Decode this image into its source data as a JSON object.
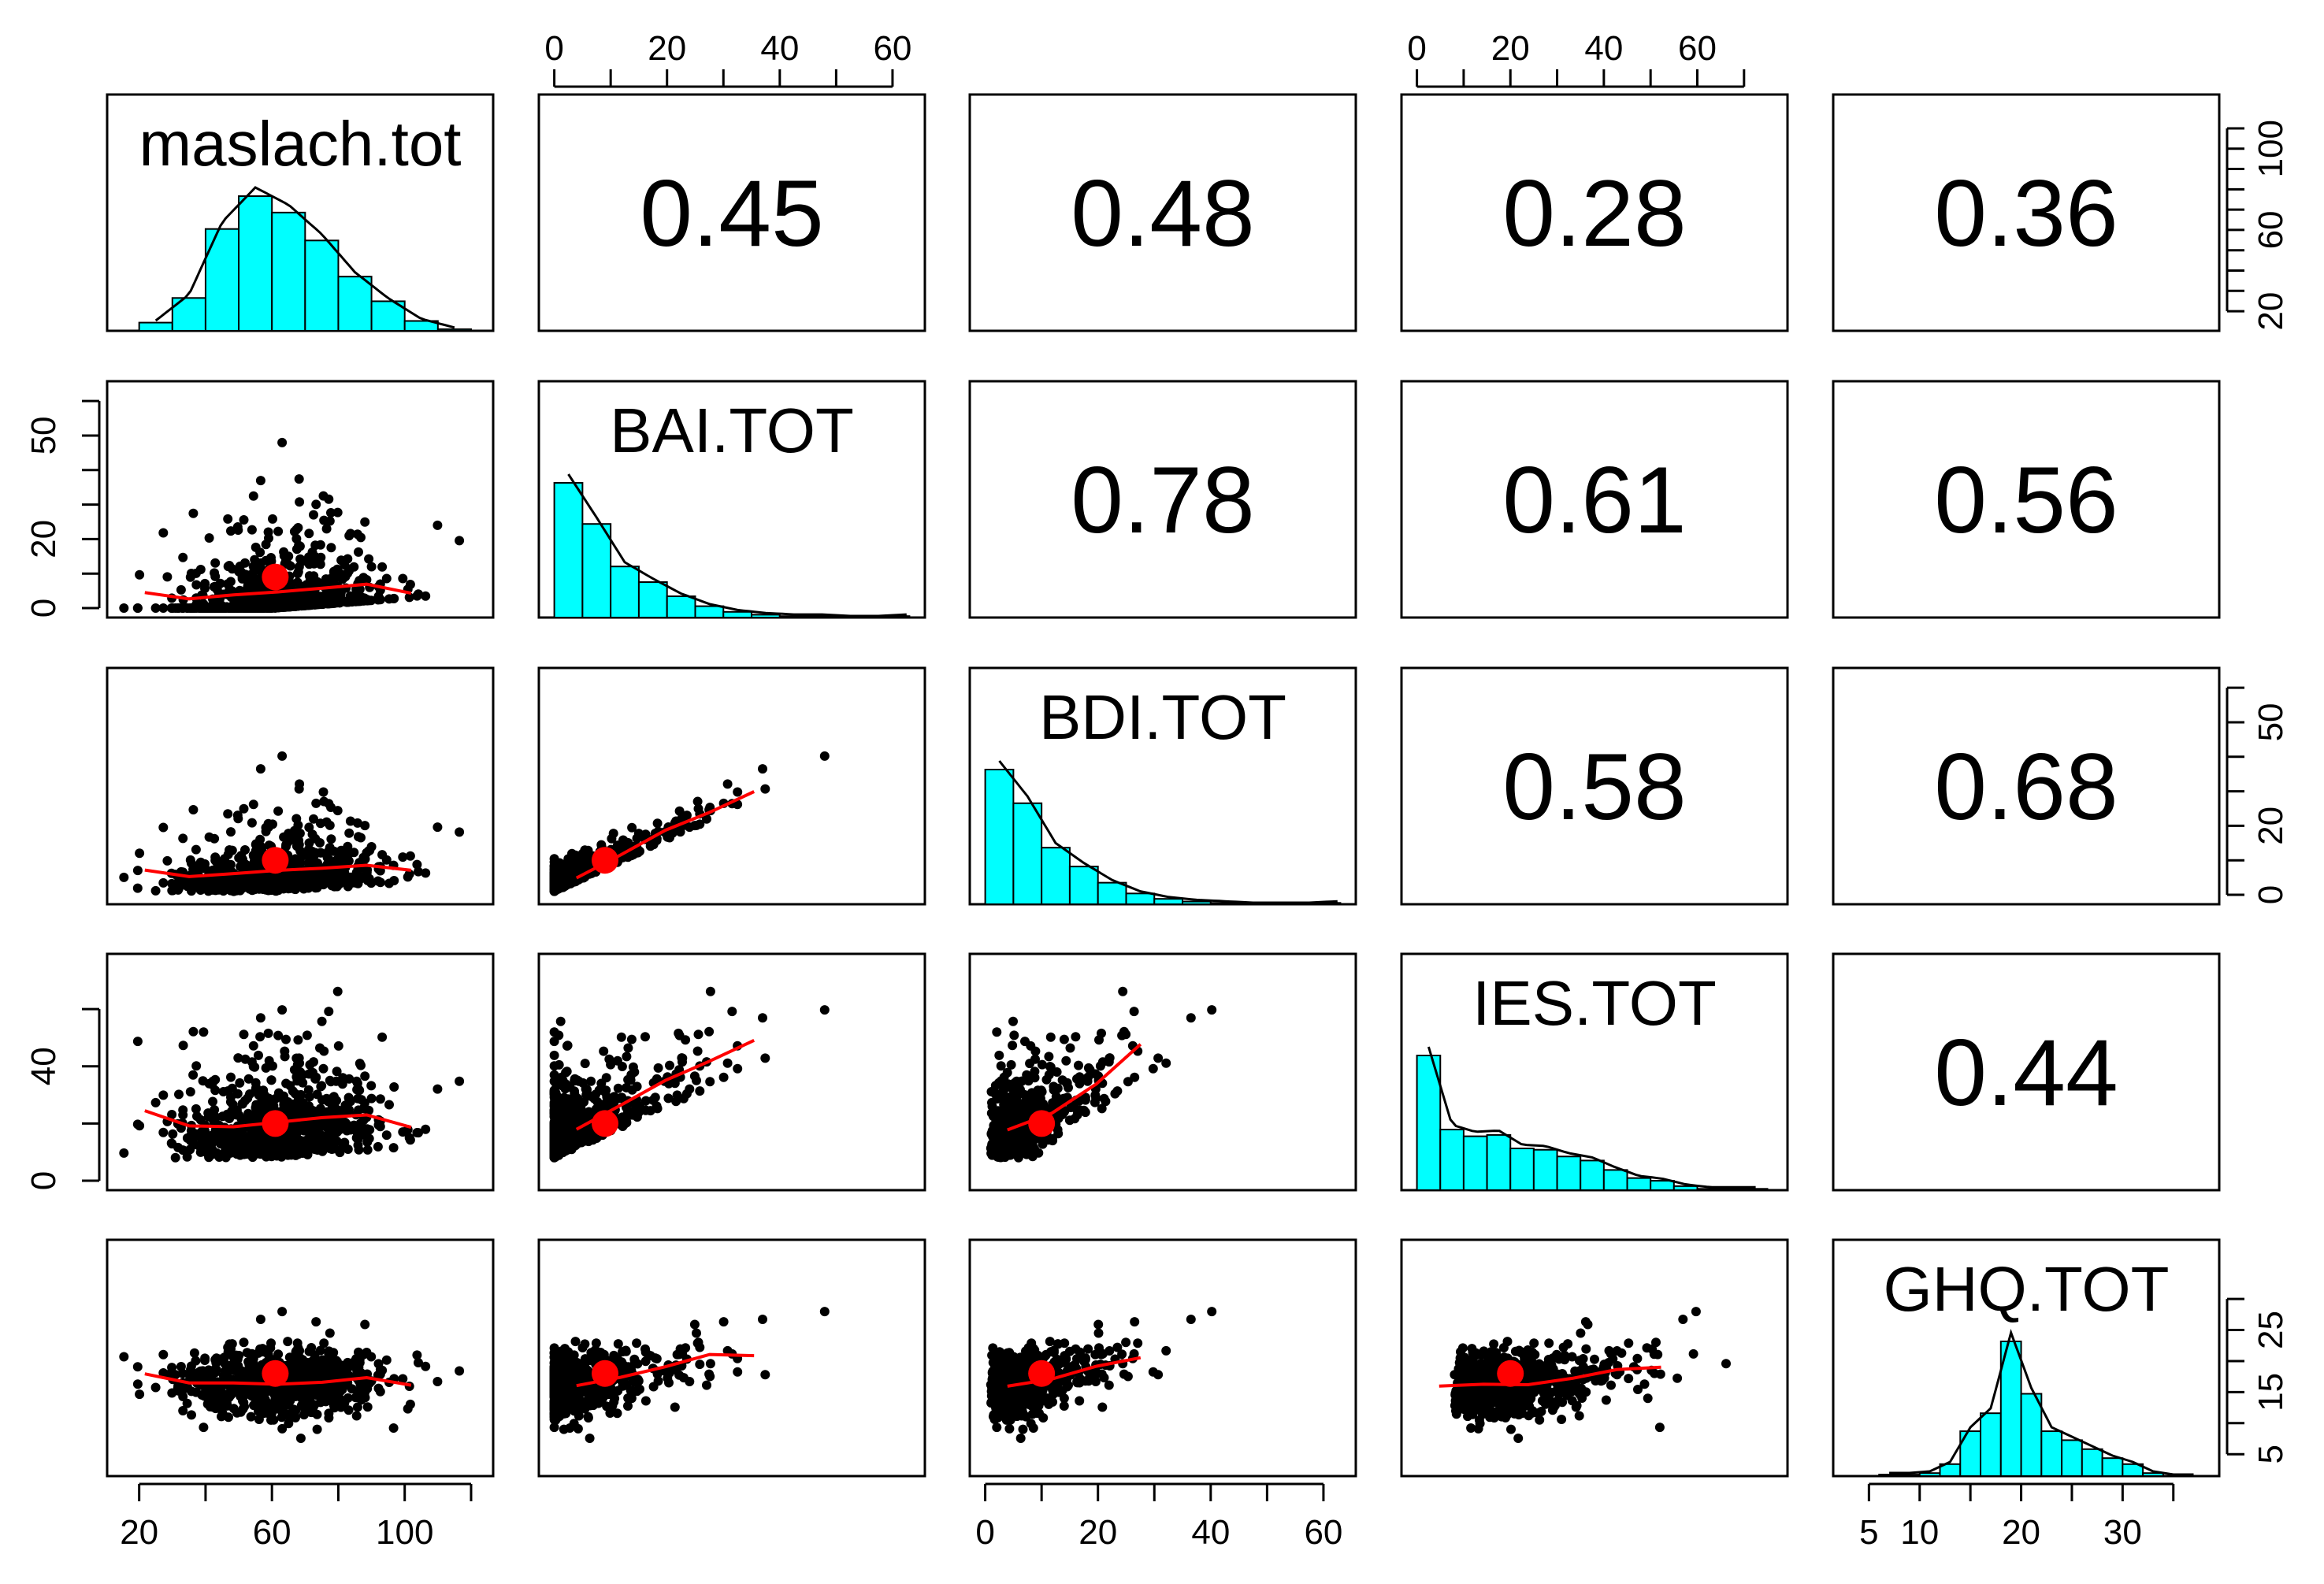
{
  "chart_data": {
    "type": "pairs",
    "title": "",
    "variables": [
      "maslach.tot",
      "BAI.TOT",
      "BDI.TOT",
      "IES.TOT",
      "GHQ.TOT"
    ],
    "ranges": [
      [
        15,
        122
      ],
      [
        0,
        63
      ],
      [
        0,
        63
      ],
      [
        0,
        76
      ],
      [
        3,
        38
      ]
    ],
    "correlations": [
      {
        "row": 0,
        "col": 1,
        "value": "0.45"
      },
      {
        "row": 0,
        "col": 2,
        "value": "0.48"
      },
      {
        "row": 0,
        "col": 3,
        "value": "0.28"
      },
      {
        "row": 0,
        "col": 4,
        "value": "0.36"
      },
      {
        "row": 1,
        "col": 2,
        "value": "0.78"
      },
      {
        "row": 1,
        "col": 3,
        "value": "0.61"
      },
      {
        "row": 1,
        "col": 4,
        "value": "0.56"
      },
      {
        "row": 2,
        "col": 3,
        "value": "0.58"
      },
      {
        "row": 2,
        "col": 4,
        "value": "0.68"
      },
      {
        "row": 3,
        "col": 4,
        "value": "0.44"
      }
    ],
    "histograms": [
      {
        "var": "maslach.tot",
        "bin_start": 20,
        "bin_width": 10,
        "counts": [
          5,
          20,
          62,
          82,
          72,
          55,
          33,
          18,
          6,
          1
        ]
      },
      {
        "var": "BAI.TOT",
        "bin_start": 0,
        "bin_width": 5,
        "counts": [
          95,
          66,
          36,
          25,
          15,
          8,
          4,
          2,
          1,
          1,
          0,
          0,
          1
        ]
      },
      {
        "var": "BDI.TOT",
        "bin_start": 0,
        "bin_width": 5,
        "counts": [
          100,
          75,
          42,
          28,
          16,
          8,
          4,
          2,
          1,
          0,
          0,
          0,
          1
        ]
      },
      {
        "var": "IES.TOT",
        "bin_start": 0,
        "bin_width": 5,
        "counts": [
          100,
          45,
          40,
          41,
          31,
          30,
          25,
          22,
          15,
          9,
          7,
          3,
          1,
          1,
          1
        ]
      },
      {
        "var": "GHQ.TOT",
        "bin_start": 6,
        "bin_width": 2,
        "counts": [
          1,
          1,
          2,
          8,
          30,
          42,
          90,
          55,
          30,
          24,
          18,
          12,
          8,
          2,
          0,
          0
        ]
      }
    ],
    "scatter_centroids": [
      {
        "row": 1,
        "col": 0,
        "x": 61,
        "y": 9
      },
      {
        "row": 2,
        "col": 0,
        "x": 61,
        "y": 10
      },
      {
        "row": 2,
        "col": 1,
        "x": 9,
        "y": 10
      },
      {
        "row": 3,
        "col": 0,
        "x": 61,
        "y": 20
      },
      {
        "row": 3,
        "col": 1,
        "x": 9,
        "y": 20
      },
      {
        "row": 3,
        "col": 2,
        "x": 10,
        "y": 20
      },
      {
        "row": 4,
        "col": 0,
        "x": 61,
        "y": 18
      },
      {
        "row": 4,
        "col": 1,
        "x": 9,
        "y": 18
      },
      {
        "row": 4,
        "col": 2,
        "x": 10,
        "y": 18
      },
      {
        "row": 4,
        "col": 3,
        "x": 20,
        "y": 18
      }
    ],
    "axis_ticks": {
      "bottom_col0": {
        "values": [
          20,
          40,
          60,
          80,
          100,
          120
        ],
        "labels": [
          "20",
          "",
          "60",
          "",
          "100",
          ""
        ]
      },
      "bottom_col2": {
        "values": [
          0,
          10,
          20,
          30,
          40,
          50,
          60
        ],
        "labels": [
          "0",
          "",
          "20",
          "",
          "40",
          "",
          "60"
        ]
      },
      "bottom_col4": {
        "values": [
          5,
          10,
          15,
          20,
          25,
          30,
          35
        ],
        "labels": [
          "5",
          "10",
          "",
          "20",
          "",
          "30",
          ""
        ]
      },
      "top_col1": {
        "values": [
          0,
          10,
          20,
          30,
          40,
          50,
          60
        ],
        "labels": [
          "0",
          "",
          "20",
          "",
          "40",
          "",
          "60"
        ]
      },
      "top_col3": {
        "values": [
          0,
          10,
          20,
          30,
          40,
          50,
          60,
          70
        ],
        "labels": [
          "0",
          "",
          "20",
          "",
          "40",
          "",
          "60",
          ""
        ]
      },
      "left_row1": {
        "values": [
          0,
          10,
          20,
          30,
          40,
          50,
          60
        ],
        "labels": [
          "0",
          "",
          "20",
          "",
          "",
          "50",
          ""
        ]
      },
      "left_row3": {
        "values": [
          0,
          20,
          40,
          60
        ],
        "labels": [
          "0",
          "",
          "40",
          ""
        ]
      },
      "right_row0": {
        "values": [
          20,
          30,
          40,
          50,
          60,
          70,
          80,
          90,
          100,
          110
        ],
        "labels": [
          "20",
          "",
          "",
          "",
          "60",
          "",
          "",
          "",
          "100",
          ""
        ]
      },
      "right_row2": {
        "values": [
          0,
          10,
          20,
          30,
          40,
          50,
          60
        ],
        "labels": [
          "0",
          "",
          "20",
          "",
          "",
          "50",
          ""
        ]
      },
      "right_row4": {
        "values": [
          5,
          10,
          15,
          20,
          25,
          30
        ],
        "labels": [
          "5",
          "",
          "15",
          "",
          "25",
          ""
        ]
      }
    },
    "colors": {
      "hist_fill": "#00ffff",
      "smooth": "#ff0000",
      "points": "#000000"
    }
  }
}
